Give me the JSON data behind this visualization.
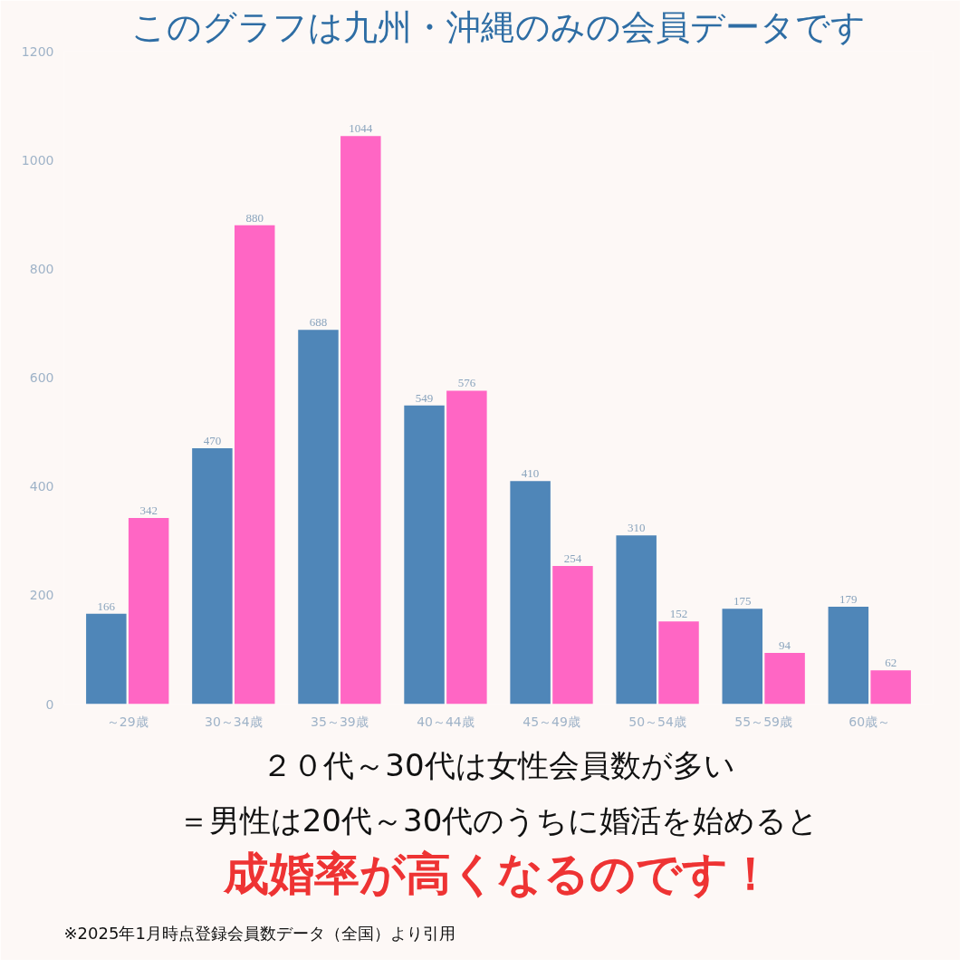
{
  "chart_data": {
    "type": "bar",
    "title": "このグラフは九州・沖縄のみの会員データです",
    "categories": [
      "～29歳",
      "30～34歳",
      "35～39歳",
      "40～44歳",
      "45～49歳",
      "50～54歳",
      "55～59歳",
      "60歳～"
    ],
    "series": [
      {
        "color": "#4f86b8",
        "values": [
          166,
          470,
          688,
          549,
          410,
          310,
          175,
          179
        ]
      },
      {
        "color": "#ff66c4",
        "values": [
          342,
          880,
          1044,
          576,
          254,
          152,
          94,
          62
        ]
      }
    ],
    "ylim": [
      0,
      1200
    ],
    "yticks": [
      0,
      200,
      400,
      600,
      800,
      1000,
      1200
    ],
    "grid": false,
    "data_labels": true,
    "annotations": [
      "２０代～30代は女性会員数が多い",
      "＝男性は20代～30代のうちに婚活を始めると",
      "成婚率が高くなるのです！",
      "※2025年1月時点登録会員数データ（全国）より引用"
    ]
  }
}
